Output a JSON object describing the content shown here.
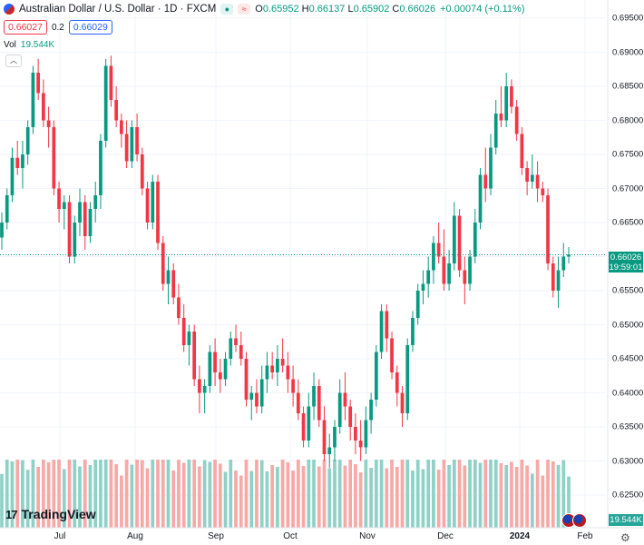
{
  "header": {
    "title": "Australian Dollar / U.S. Dollar · 1D · FXCM",
    "ohlc": [
      {
        "k": "O",
        "v": "0.65952"
      },
      {
        "k": "H",
        "v": "0.66137"
      },
      {
        "k": "L",
        "v": "0.65902"
      },
      {
        "k": "C",
        "v": "0.66026"
      }
    ],
    "change": "+0.00074 (+0.11%)",
    "sell_price": "0.66027",
    "spread": "0.2",
    "buy_price": "0.66029",
    "vol_label": "Vol",
    "vol_value": "19.544K"
  },
  "brand": "TradingView",
  "last_price": {
    "price": "0.66026",
    "countdown": "19:59:01"
  },
  "volume_tag": "19.544K",
  "colors": {
    "up": "#089981",
    "down": "#f23645",
    "vol_up": "#8fd1c7",
    "vol_down": "#f7a9a7",
    "grid": "#f0f3fa"
  },
  "icons": [
    "symbol-icon",
    "eye-icon",
    "chevron-up-icon",
    "tradingview-logo-icon",
    "flag-icon",
    "gear-icon"
  ],
  "chart_data": {
    "type": "candlestick",
    "title": "Australian Dollar / U.S. Dollar · 1D · FXCM",
    "y_ticks": [
      "0.69500",
      "0.69000",
      "0.68500",
      "0.68000",
      "0.67500",
      "0.67000",
      "0.66500",
      "0.66000",
      "0.65500",
      "0.65000",
      "0.64500",
      "0.64000",
      "0.63500",
      "0.63000",
      "0.62500"
    ],
    "x_ticks": [
      "Jul",
      "Aug",
      "Sep",
      "Oct",
      "Nov",
      "Dec",
      "2024",
      "Feb"
    ],
    "ylim": [
      0.6225,
      0.6965
    ],
    "grid": true,
    "series": [
      {
        "name": "AUDUSD",
        "candles": [
          [
            0.6628,
            0.6665,
            0.661,
            0.665
          ],
          [
            0.665,
            0.67,
            0.664,
            0.669
          ],
          [
            0.669,
            0.676,
            0.668,
            0.6745
          ],
          [
            0.6745,
            0.677,
            0.672,
            0.673
          ],
          [
            0.673,
            0.677,
            0.67,
            0.675
          ],
          [
            0.675,
            0.68,
            0.6735,
            0.679
          ],
          [
            0.679,
            0.688,
            0.678,
            0.687
          ],
          [
            0.687,
            0.689,
            0.683,
            0.684
          ],
          [
            0.684,
            0.686,
            0.679,
            0.68
          ],
          [
            0.68,
            0.682,
            0.676,
            0.679
          ],
          [
            0.679,
            0.68,
            0.669,
            0.67
          ],
          [
            0.67,
            0.671,
            0.665,
            0.667
          ],
          [
            0.667,
            0.669,
            0.664,
            0.668
          ],
          [
            0.668,
            0.669,
            0.659,
            0.66
          ],
          [
            0.66,
            0.666,
            0.659,
            0.665
          ],
          [
            0.665,
            0.67,
            0.663,
            0.668
          ],
          [
            0.668,
            0.669,
            0.661,
            0.663
          ],
          [
            0.663,
            0.668,
            0.662,
            0.667
          ],
          [
            0.667,
            0.671,
            0.665,
            0.669
          ],
          [
            0.669,
            0.678,
            0.667,
            0.677
          ],
          [
            0.677,
            0.689,
            0.676,
            0.688
          ],
          [
            0.688,
            0.6895,
            0.682,
            0.683
          ],
          [
            0.683,
            0.685,
            0.679,
            0.68
          ],
          [
            0.68,
            0.681,
            0.676,
            0.678
          ],
          [
            0.678,
            0.68,
            0.673,
            0.674
          ],
          [
            0.674,
            0.68,
            0.673,
            0.679
          ],
          [
            0.679,
            0.681,
            0.674,
            0.675
          ],
          [
            0.675,
            0.676,
            0.669,
            0.67
          ],
          [
            0.67,
            0.671,
            0.664,
            0.665
          ],
          [
            0.665,
            0.672,
            0.664,
            0.671
          ],
          [
            0.671,
            0.672,
            0.661,
            0.662
          ],
          [
            0.662,
            0.663,
            0.655,
            0.656
          ],
          [
            0.656,
            0.66,
            0.653,
            0.658
          ],
          [
            0.658,
            0.659,
            0.653,
            0.654
          ],
          [
            0.654,
            0.656,
            0.65,
            0.651
          ],
          [
            0.651,
            0.653,
            0.646,
            0.647
          ],
          [
            0.647,
            0.65,
            0.644,
            0.649
          ],
          [
            0.649,
            0.65,
            0.641,
            0.642
          ],
          [
            0.642,
            0.644,
            0.637,
            0.64
          ],
          [
            0.64,
            0.642,
            0.637,
            0.641
          ],
          [
            0.641,
            0.647,
            0.64,
            0.646
          ],
          [
            0.646,
            0.648,
            0.641,
            0.643
          ],
          [
            0.643,
            0.645,
            0.64,
            0.642
          ],
          [
            0.642,
            0.646,
            0.641,
            0.645
          ],
          [
            0.645,
            0.649,
            0.644,
            0.648
          ],
          [
            0.648,
            0.65,
            0.646,
            0.647
          ],
          [
            0.647,
            0.649,
            0.644,
            0.645
          ],
          [
            0.645,
            0.646,
            0.638,
            0.639
          ],
          [
            0.639,
            0.641,
            0.636,
            0.64
          ],
          [
            0.64,
            0.642,
            0.637,
            0.638
          ],
          [
            0.638,
            0.644,
            0.637,
            0.642
          ],
          [
            0.642,
            0.646,
            0.64,
            0.644
          ],
          [
            0.644,
            0.646,
            0.642,
            0.643
          ],
          [
            0.643,
            0.647,
            0.641,
            0.645
          ],
          [
            0.645,
            0.648,
            0.643,
            0.644
          ],
          [
            0.644,
            0.646,
            0.64,
            0.642
          ],
          [
            0.642,
            0.644,
            0.638,
            0.64
          ],
          [
            0.64,
            0.642,
            0.636,
            0.637
          ],
          [
            0.637,
            0.638,
            0.632,
            0.633
          ],
          [
            0.633,
            0.64,
            0.632,
            0.638
          ],
          [
            0.638,
            0.643,
            0.636,
            0.641
          ],
          [
            0.641,
            0.642,
            0.635,
            0.636
          ],
          [
            0.636,
            0.638,
            0.63,
            0.631
          ],
          [
            0.631,
            0.634,
            0.629,
            0.632
          ],
          [
            0.632,
            0.636,
            0.63,
            0.635
          ],
          [
            0.635,
            0.642,
            0.634,
            0.64
          ],
          [
            0.64,
            0.643,
            0.636,
            0.638
          ],
          [
            0.638,
            0.639,
            0.633,
            0.635
          ],
          [
            0.635,
            0.637,
            0.631,
            0.633
          ],
          [
            0.633,
            0.636,
            0.63,
            0.632
          ],
          [
            0.632,
            0.638,
            0.631,
            0.636
          ],
          [
            0.636,
            0.64,
            0.634,
            0.639
          ],
          [
            0.639,
            0.647,
            0.638,
            0.646
          ],
          [
            0.646,
            0.653,
            0.645,
            0.652
          ],
          [
            0.652,
            0.653,
            0.646,
            0.648
          ],
          [
            0.648,
            0.649,
            0.642,
            0.643
          ],
          [
            0.643,
            0.644,
            0.638,
            0.64
          ],
          [
            0.64,
            0.641,
            0.635,
            0.637
          ],
          [
            0.637,
            0.648,
            0.636,
            0.647
          ],
          [
            0.647,
            0.652,
            0.646,
            0.651
          ],
          [
            0.651,
            0.656,
            0.65,
            0.655
          ],
          [
            0.655,
            0.658,
            0.653,
            0.656
          ],
          [
            0.656,
            0.66,
            0.654,
            0.658
          ],
          [
            0.658,
            0.663,
            0.656,
            0.662
          ],
          [
            0.662,
            0.665,
            0.659,
            0.66
          ],
          [
            0.66,
            0.664,
            0.655,
            0.656
          ],
          [
            0.656,
            0.661,
            0.655,
            0.659
          ],
          [
            0.659,
            0.668,
            0.658,
            0.666
          ],
          [
            0.666,
            0.667,
            0.657,
            0.658
          ],
          [
            0.658,
            0.66,
            0.653,
            0.656
          ],
          [
            0.656,
            0.661,
            0.655,
            0.66
          ],
          [
            0.66,
            0.667,
            0.659,
            0.665
          ],
          [
            0.665,
            0.673,
            0.664,
            0.672
          ],
          [
            0.672,
            0.676,
            0.668,
            0.67
          ],
          [
            0.67,
            0.678,
            0.669,
            0.676
          ],
          [
            0.676,
            0.683,
            0.675,
            0.681
          ],
          [
            0.681,
            0.685,
            0.679,
            0.68
          ],
          [
            0.68,
            0.687,
            0.679,
            0.685
          ],
          [
            0.685,
            0.686,
            0.681,
            0.682
          ],
          [
            0.682,
            0.683,
            0.677,
            0.678
          ],
          [
            0.678,
            0.679,
            0.672,
            0.673
          ],
          [
            0.673,
            0.674,
            0.669,
            0.671
          ],
          [
            0.671,
            0.675,
            0.67,
            0.672
          ],
          [
            0.672,
            0.674,
            0.668,
            0.67
          ],
          [
            0.67,
            0.671,
            0.668,
            0.669
          ],
          [
            0.669,
            0.67,
            0.658,
            0.659
          ],
          [
            0.659,
            0.66,
            0.654,
            0.655
          ],
          [
            0.655,
            0.66,
            0.6525,
            0.658
          ],
          [
            0.658,
            0.662,
            0.657,
            0.66
          ],
          [
            0.66,
            0.6614,
            0.659,
            0.6603
          ]
        ]
      }
    ],
    "volume": {
      "name": "Vol",
      "last": "19.544K"
    }
  }
}
